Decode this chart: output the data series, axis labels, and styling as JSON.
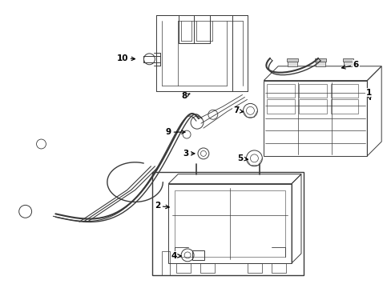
{
  "bg_color": "#ffffff",
  "line_color": "#3a3a3a",
  "label_color": "#000000",
  "fig_width": 4.89,
  "fig_height": 3.6,
  "dpi": 100
}
